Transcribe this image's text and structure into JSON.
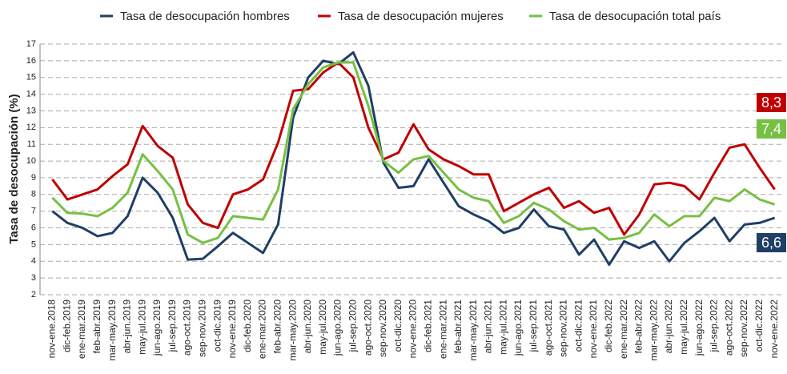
{
  "chart_data": {
    "type": "line",
    "y_label": "Tasa de desocupación (%)",
    "categories": [
      "nov-ene.2018",
      "dic-feb.2019",
      "ene-mar.2019",
      "feb-abr.2019",
      "mar-may.2019",
      "abr-jun.2019",
      "may-jul.2019",
      "jun-ago.2019",
      "jul-sep.2019",
      "ago-oct.2019",
      "sep-nov.2019",
      "oct-dic.2019",
      "nov-ene.2019",
      "dic-feb.2020",
      "ene-mar.2020",
      "feb-abr.2020",
      "mar-may.2020",
      "abr-jun.2020",
      "may-jul.2020",
      "jun-ago.2020",
      "jul-sep.2020",
      "ago-oct.2020",
      "sep-nov.2020",
      "oct-dic.2020",
      "nov-ene.2020",
      "dic-feb.2021",
      "ene-mar.2021",
      "feb-abr.2021",
      "mar-may.2021",
      "abr-jun.2021",
      "may-jul.2021",
      "jun-ago.2021",
      "jul-sep.2021",
      "ago-oct.2021",
      "sep-nov.2021",
      "oct-dic.2021",
      "nov-ene.2021",
      "dic-feb.2022",
      "ene-mar.2022",
      "feb-abr.2022",
      "mar-may.2022",
      "abr-jun.2022",
      "may-jul.2022",
      "jun-ago.2022",
      "jul-sep.2022",
      "ago-oct.2022",
      "sep-nov.2022",
      "oct-dic.2022",
      "nov-ene.2022"
    ],
    "series": [
      {
        "name": "Tasa de desocupación hombres",
        "color": "#1f3f66",
        "values": [
          7.0,
          6.3,
          6.0,
          5.5,
          5.7,
          6.7,
          9.0,
          8.1,
          6.6,
          4.1,
          4.15,
          4.9,
          5.7,
          5.1,
          4.5,
          6.2,
          12.6,
          15.0,
          16.0,
          15.8,
          16.5,
          14.5,
          9.9,
          8.4,
          8.5,
          10.1,
          8.7,
          7.3,
          6.8,
          6.4,
          5.7,
          6.0,
          7.1,
          6.1,
          5.9,
          4.4,
          5.3,
          3.8,
          5.2,
          4.8,
          5.2,
          4.0,
          5.1,
          5.8,
          6.6,
          5.2,
          6.2,
          6.3,
          6.6
        ],
        "value_labels": [
          null,
          null,
          null,
          null,
          null,
          null,
          null,
          null,
          null,
          null,
          null,
          null,
          null,
          null,
          null,
          null,
          null,
          null,
          null,
          null,
          null,
          null,
          null,
          null,
          null,
          null,
          null,
          null,
          null,
          null,
          null,
          null,
          null,
          null,
          null,
          null,
          null,
          null,
          null,
          null,
          null,
          null,
          null,
          null,
          null,
          null,
          null,
          null,
          "6,6"
        ]
      },
      {
        "name": "Tasa de desocupación mujeres",
        "color": "#c00000",
        "values": [
          8.9,
          7.7,
          8.0,
          8.3,
          9.1,
          9.8,
          12.1,
          10.9,
          10.2,
          7.4,
          6.3,
          6.0,
          8.0,
          8.3,
          8.9,
          11.1,
          14.2,
          14.3,
          15.3,
          15.9,
          15.0,
          12.0,
          10.1,
          10.5,
          12.2,
          10.7,
          10.1,
          9.7,
          9.2,
          9.2,
          7.0,
          7.5,
          8.0,
          8.4,
          7.2,
          7.6,
          6.9,
          7.2,
          5.6,
          6.8,
          8.6,
          8.7,
          8.5,
          7.7,
          9.3,
          10.8,
          11.0,
          9.6,
          8.3
        ],
        "value_labels": [
          null,
          null,
          null,
          null,
          null,
          null,
          null,
          null,
          null,
          null,
          null,
          null,
          null,
          null,
          null,
          null,
          null,
          null,
          null,
          null,
          null,
          null,
          null,
          null,
          null,
          null,
          null,
          null,
          null,
          null,
          null,
          null,
          null,
          null,
          null,
          null,
          null,
          null,
          null,
          null,
          null,
          null,
          null,
          null,
          null,
          null,
          null,
          null,
          "8,3"
        ]
      },
      {
        "name": "Tasa de desocupación total país",
        "color": "#76c043",
        "values": [
          7.8,
          6.9,
          6.85,
          6.7,
          7.2,
          8.1,
          10.4,
          9.4,
          8.3,
          5.6,
          5.1,
          5.4,
          6.7,
          6.6,
          6.5,
          8.3,
          13.1,
          14.6,
          15.6,
          15.9,
          15.9,
          13.3,
          10.0,
          9.3,
          10.1,
          10.3,
          9.3,
          8.3,
          7.8,
          7.6,
          6.3,
          6.7,
          7.5,
          7.1,
          6.4,
          5.9,
          6.0,
          5.3,
          5.4,
          5.7,
          6.8,
          6.1,
          6.7,
          6.7,
          7.8,
          7.6,
          8.3,
          7.7,
          7.4
        ],
        "value_labels": [
          null,
          null,
          null,
          null,
          null,
          null,
          null,
          null,
          null,
          null,
          null,
          null,
          null,
          null,
          null,
          null,
          null,
          null,
          null,
          null,
          null,
          null,
          null,
          null,
          null,
          null,
          null,
          null,
          null,
          null,
          null,
          null,
          null,
          null,
          null,
          null,
          null,
          null,
          null,
          null,
          null,
          null,
          null,
          null,
          null,
          null,
          null,
          null,
          "7,4"
        ]
      }
    ],
    "ylim": [
      2,
      17
    ],
    "yticks": [
      2,
      3,
      4,
      5,
      6,
      7,
      8,
      9,
      10,
      11,
      12,
      13,
      14,
      15,
      16,
      17
    ],
    "grid": true,
    "legend": "top"
  }
}
